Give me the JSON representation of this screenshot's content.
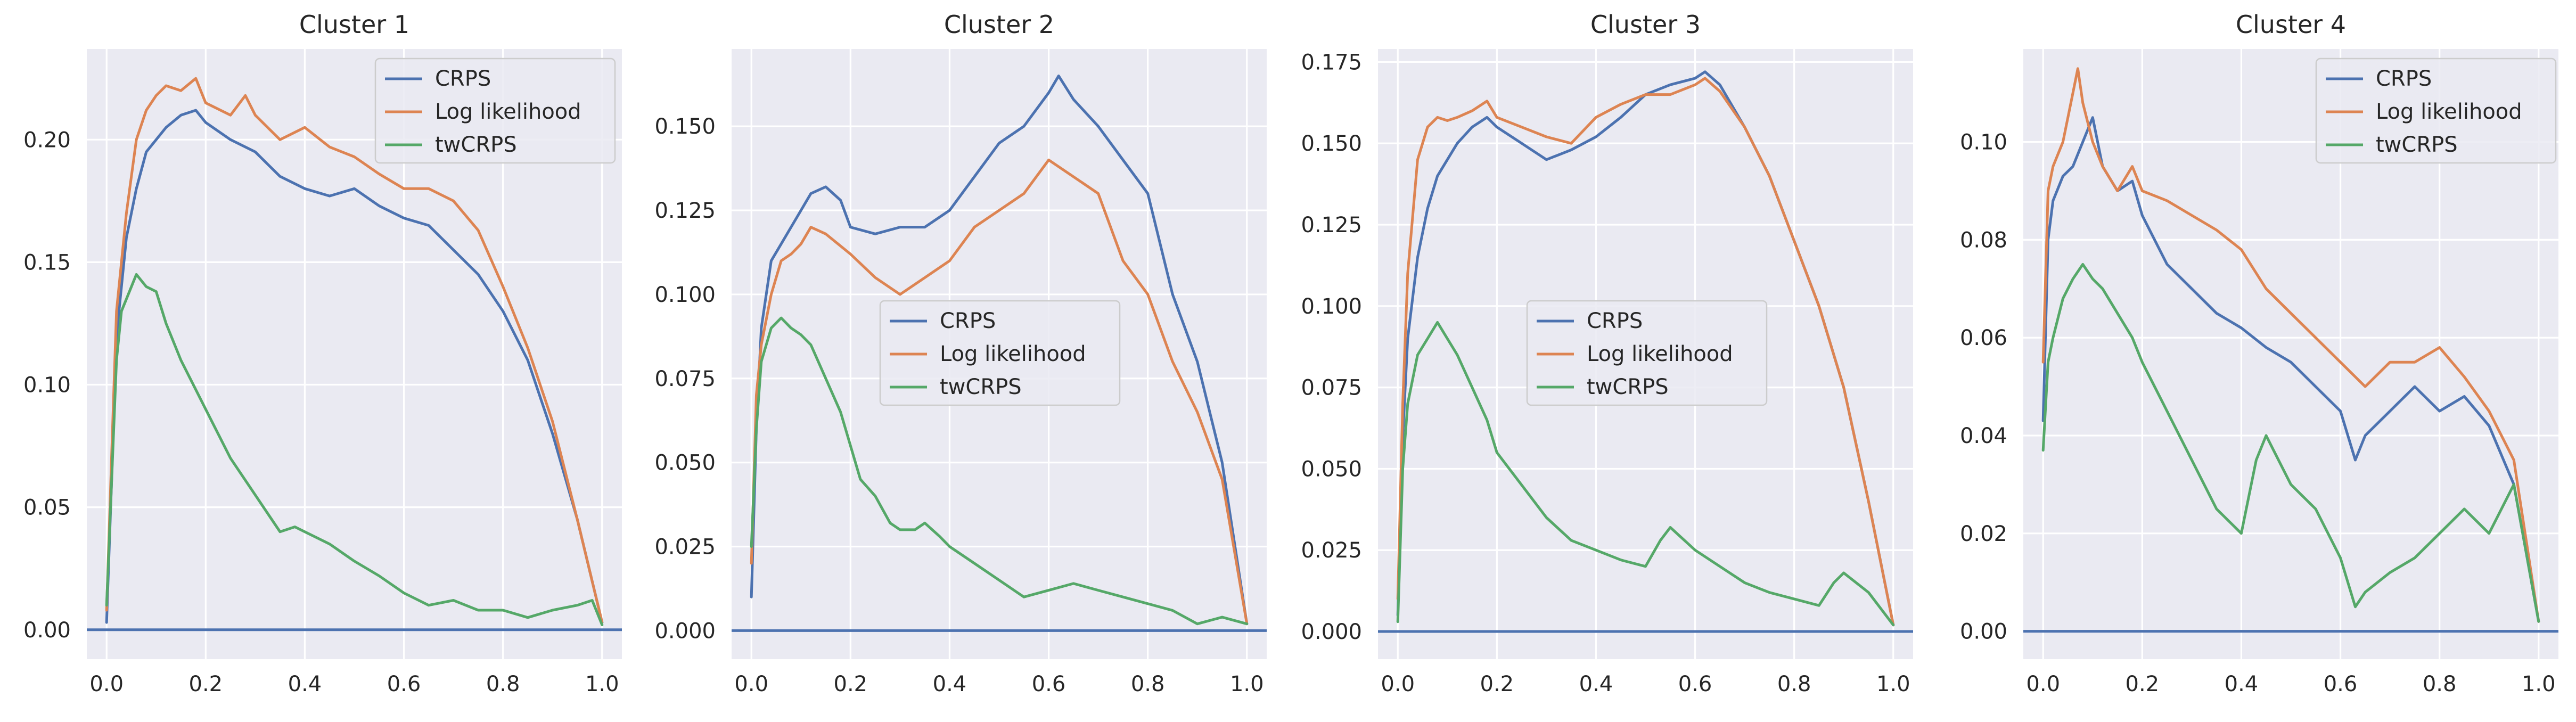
{
  "colors": {
    "CRPS": "#4c72b0",
    "Log likelihood": "#dd8452",
    "twCRPS": "#55a868",
    "baseline": "#4c72b0"
  },
  "chart_data": [
    {
      "type": "line",
      "title": "Cluster 1",
      "xlabel": "",
      "ylabel": "",
      "xlim": [
        -0.04,
        1.04
      ],
      "ylim": [
        -0.012,
        0.237
      ],
      "xticks": [
        "0.0",
        "0.2",
        "0.4",
        "0.6",
        "0.8",
        "1.0"
      ],
      "xtick_values": [
        0,
        0.2,
        0.4,
        0.6,
        0.8,
        1.0
      ],
      "yticks": [
        "0.00",
        "0.05",
        "0.10",
        "0.15",
        "0.20"
      ],
      "ytick_values": [
        0,
        0.05,
        0.1,
        0.15,
        0.2
      ],
      "legend": {
        "placement": "upper-right",
        "labels": [
          "CRPS",
          "Log likelihood",
          "twCRPS"
        ]
      },
      "grid": true,
      "baseline": 0,
      "series": [
        {
          "name": "CRPS",
          "x": [
            0,
            0.01,
            0.02,
            0.04,
            0.06,
            0.08,
            0.1,
            0.12,
            0.15,
            0.18,
            0.2,
            0.25,
            0.3,
            0.35,
            0.4,
            0.45,
            0.5,
            0.55,
            0.6,
            0.65,
            0.7,
            0.75,
            0.8,
            0.85,
            0.9,
            0.95,
            1.0
          ],
          "y": [
            0.003,
            0.06,
            0.12,
            0.16,
            0.18,
            0.195,
            0.2,
            0.205,
            0.21,
            0.212,
            0.207,
            0.2,
            0.195,
            0.185,
            0.18,
            0.177,
            0.18,
            0.173,
            0.168,
            0.165,
            0.155,
            0.145,
            0.13,
            0.11,
            0.08,
            0.045,
            0.003
          ]
        },
        {
          "name": "Log likelihood",
          "x": [
            0,
            0.01,
            0.02,
            0.04,
            0.06,
            0.08,
            0.1,
            0.12,
            0.15,
            0.18,
            0.2,
            0.25,
            0.28,
            0.3,
            0.35,
            0.4,
            0.45,
            0.5,
            0.55,
            0.6,
            0.65,
            0.7,
            0.75,
            0.8,
            0.85,
            0.9,
            0.95,
            1.0
          ],
          "y": [
            0.008,
            0.07,
            0.13,
            0.17,
            0.2,
            0.212,
            0.218,
            0.222,
            0.22,
            0.225,
            0.215,
            0.21,
            0.218,
            0.21,
            0.2,
            0.205,
            0.197,
            0.193,
            0.186,
            0.18,
            0.18,
            0.175,
            0.163,
            0.14,
            0.115,
            0.085,
            0.045,
            0.003
          ]
        },
        {
          "name": "twCRPS",
          "x": [
            0,
            0.01,
            0.02,
            0.03,
            0.05,
            0.06,
            0.08,
            0.1,
            0.12,
            0.15,
            0.2,
            0.25,
            0.3,
            0.35,
            0.38,
            0.4,
            0.45,
            0.5,
            0.55,
            0.6,
            0.65,
            0.7,
            0.75,
            0.8,
            0.85,
            0.9,
            0.95,
            0.98,
            1.0
          ],
          "y": [
            0.01,
            0.06,
            0.11,
            0.13,
            0.14,
            0.145,
            0.14,
            0.138,
            0.125,
            0.11,
            0.09,
            0.07,
            0.055,
            0.04,
            0.042,
            0.04,
            0.035,
            0.028,
            0.022,
            0.015,
            0.01,
            0.012,
            0.008,
            0.008,
            0.005,
            0.008,
            0.01,
            0.012,
            0.002
          ]
        }
      ]
    },
    {
      "type": "line",
      "title": "Cluster 2",
      "xlabel": "",
      "ylabel": "",
      "xlim": [
        -0.04,
        1.04
      ],
      "ylim": [
        -0.0085,
        0.173
      ],
      "xticks": [
        "0.0",
        "0.2",
        "0.4",
        "0.6",
        "0.8",
        "1.0"
      ],
      "xtick_values": [
        0,
        0.2,
        0.4,
        0.6,
        0.8,
        1.0
      ],
      "yticks": [
        "0.000",
        "0.025",
        "0.050",
        "0.075",
        "0.100",
        "0.125",
        "0.150"
      ],
      "ytick_values": [
        0,
        0.025,
        0.05,
        0.075,
        0.1,
        0.125,
        0.15
      ],
      "legend": {
        "placement": "center",
        "labels": [
          "CRPS",
          "Log likelihood",
          "twCRPS"
        ]
      },
      "grid": true,
      "baseline": 0,
      "series": [
        {
          "name": "CRPS",
          "x": [
            0,
            0.01,
            0.02,
            0.04,
            0.06,
            0.08,
            0.1,
            0.12,
            0.15,
            0.18,
            0.2,
            0.25,
            0.3,
            0.35,
            0.4,
            0.45,
            0.5,
            0.55,
            0.6,
            0.62,
            0.65,
            0.7,
            0.75,
            0.8,
            0.85,
            0.9,
            0.95,
            1.0
          ],
          "y": [
            0.01,
            0.06,
            0.09,
            0.11,
            0.115,
            0.12,
            0.125,
            0.13,
            0.132,
            0.128,
            0.12,
            0.118,
            0.12,
            0.12,
            0.125,
            0.135,
            0.145,
            0.15,
            0.16,
            0.165,
            0.158,
            0.15,
            0.14,
            0.13,
            0.1,
            0.08,
            0.05,
            0.002
          ]
        },
        {
          "name": "Log likelihood",
          "x": [
            0,
            0.01,
            0.02,
            0.04,
            0.06,
            0.08,
            0.1,
            0.12,
            0.15,
            0.2,
            0.25,
            0.3,
            0.35,
            0.4,
            0.45,
            0.5,
            0.55,
            0.6,
            0.65,
            0.7,
            0.75,
            0.8,
            0.85,
            0.9,
            0.95,
            1.0
          ],
          "y": [
            0.02,
            0.07,
            0.085,
            0.1,
            0.11,
            0.112,
            0.115,
            0.12,
            0.118,
            0.112,
            0.105,
            0.1,
            0.105,
            0.11,
            0.12,
            0.125,
            0.13,
            0.14,
            0.135,
            0.13,
            0.11,
            0.1,
            0.08,
            0.065,
            0.045,
            0.002
          ]
        },
        {
          "name": "twCRPS",
          "x": [
            0,
            0.01,
            0.02,
            0.04,
            0.06,
            0.08,
            0.1,
            0.12,
            0.15,
            0.18,
            0.2,
            0.22,
            0.25,
            0.28,
            0.3,
            0.33,
            0.35,
            0.38,
            0.4,
            0.45,
            0.5,
            0.55,
            0.6,
            0.65,
            0.7,
            0.75,
            0.8,
            0.85,
            0.9,
            0.95,
            1.0
          ],
          "y": [
            0.025,
            0.06,
            0.08,
            0.09,
            0.093,
            0.09,
            0.088,
            0.085,
            0.075,
            0.065,
            0.055,
            0.045,
            0.04,
            0.032,
            0.03,
            0.03,
            0.032,
            0.028,
            0.025,
            0.02,
            0.015,
            0.01,
            0.012,
            0.014,
            0.012,
            0.01,
            0.008,
            0.006,
            0.002,
            0.004,
            0.002
          ]
        }
      ]
    },
    {
      "type": "line",
      "title": "Cluster 3",
      "xlabel": "",
      "ylabel": "",
      "xlim": [
        -0.04,
        1.04
      ],
      "ylim": [
        -0.0085,
        0.179
      ],
      "xticks": [
        "0.0",
        "0.2",
        "0.4",
        "0.6",
        "0.8",
        "1.0"
      ],
      "xtick_values": [
        0,
        0.2,
        0.4,
        0.6,
        0.8,
        1.0
      ],
      "yticks": [
        "0.000",
        "0.025",
        "0.050",
        "0.075",
        "0.100",
        "0.125",
        "0.150",
        "0.175"
      ],
      "ytick_values": [
        0,
        0.025,
        0.05,
        0.075,
        0.1,
        0.125,
        0.15,
        0.175
      ],
      "legend": {
        "placement": "center",
        "labels": [
          "CRPS",
          "Log likelihood",
          "twCRPS"
        ]
      },
      "grid": true,
      "baseline": 0,
      "series": [
        {
          "name": "CRPS",
          "x": [
            0,
            0.01,
            0.02,
            0.04,
            0.06,
            0.08,
            0.1,
            0.12,
            0.15,
            0.18,
            0.2,
            0.25,
            0.3,
            0.35,
            0.4,
            0.45,
            0.5,
            0.55,
            0.6,
            0.62,
            0.65,
            0.7,
            0.75,
            0.8,
            0.85,
            0.9,
            0.95,
            1.0
          ],
          "y": [
            0.005,
            0.06,
            0.09,
            0.115,
            0.13,
            0.14,
            0.145,
            0.15,
            0.155,
            0.158,
            0.155,
            0.15,
            0.145,
            0.148,
            0.152,
            0.158,
            0.165,
            0.168,
            0.17,
            0.172,
            0.168,
            0.155,
            0.14,
            0.12,
            0.1,
            0.075,
            0.04,
            0.002
          ]
        },
        {
          "name": "Log likelihood",
          "x": [
            0,
            0.01,
            0.02,
            0.04,
            0.06,
            0.08,
            0.1,
            0.12,
            0.15,
            0.18,
            0.2,
            0.25,
            0.3,
            0.35,
            0.4,
            0.45,
            0.5,
            0.55,
            0.6,
            0.62,
            0.65,
            0.7,
            0.75,
            0.8,
            0.85,
            0.9,
            0.95,
            1.0
          ],
          "y": [
            0.01,
            0.07,
            0.11,
            0.145,
            0.155,
            0.158,
            0.157,
            0.158,
            0.16,
            0.163,
            0.158,
            0.155,
            0.152,
            0.15,
            0.158,
            0.162,
            0.165,
            0.165,
            0.168,
            0.17,
            0.166,
            0.155,
            0.14,
            0.12,
            0.1,
            0.075,
            0.04,
            0.002
          ]
        },
        {
          "name": "twCRPS",
          "x": [
            0,
            0.01,
            0.02,
            0.04,
            0.06,
            0.08,
            0.1,
            0.12,
            0.15,
            0.18,
            0.2,
            0.25,
            0.3,
            0.35,
            0.4,
            0.45,
            0.5,
            0.53,
            0.55,
            0.6,
            0.65,
            0.7,
            0.75,
            0.8,
            0.85,
            0.88,
            0.9,
            0.95,
            1.0
          ],
          "y": [
            0.003,
            0.05,
            0.07,
            0.085,
            0.09,
            0.095,
            0.09,
            0.085,
            0.075,
            0.065,
            0.055,
            0.045,
            0.035,
            0.028,
            0.025,
            0.022,
            0.02,
            0.028,
            0.032,
            0.025,
            0.02,
            0.015,
            0.012,
            0.01,
            0.008,
            0.015,
            0.018,
            0.012,
            0.002
          ]
        }
      ]
    },
    {
      "type": "line",
      "title": "Cluster 4",
      "xlabel": "",
      "ylabel": "",
      "xlim": [
        -0.04,
        1.04
      ],
      "ylim": [
        -0.0057,
        0.119
      ],
      "xticks": [
        "0.0",
        "0.2",
        "0.4",
        "0.6",
        "0.8",
        "1.0"
      ],
      "xtick_values": [
        0,
        0.2,
        0.4,
        0.6,
        0.8,
        1.0
      ],
      "yticks": [
        "0.00",
        "0.02",
        "0.04",
        "0.06",
        "0.08",
        "0.10"
      ],
      "ytick_values": [
        0,
        0.02,
        0.04,
        0.06,
        0.08,
        0.1
      ],
      "legend": {
        "placement": "upper-right",
        "labels": [
          "CRPS",
          "Log likelihood",
          "twCRPS"
        ]
      },
      "grid": true,
      "baseline": 0,
      "series": [
        {
          "name": "CRPS",
          "x": [
            0,
            0.01,
            0.02,
            0.04,
            0.06,
            0.08,
            0.1,
            0.12,
            0.15,
            0.18,
            0.2,
            0.25,
            0.3,
            0.35,
            0.4,
            0.45,
            0.5,
            0.55,
            0.6,
            0.63,
            0.65,
            0.7,
            0.75,
            0.8,
            0.85,
            0.9,
            0.95,
            1.0
          ],
          "y": [
            0.043,
            0.08,
            0.088,
            0.093,
            0.095,
            0.1,
            0.105,
            0.095,
            0.09,
            0.092,
            0.085,
            0.075,
            0.07,
            0.065,
            0.062,
            0.058,
            0.055,
            0.05,
            0.045,
            0.035,
            0.04,
            0.045,
            0.05,
            0.045,
            0.048,
            0.042,
            0.03,
            0.002
          ]
        },
        {
          "name": "Log likelihood",
          "x": [
            0,
            0.01,
            0.02,
            0.04,
            0.06,
            0.07,
            0.08,
            0.1,
            0.12,
            0.15,
            0.18,
            0.2,
            0.25,
            0.3,
            0.35,
            0.4,
            0.45,
            0.5,
            0.55,
            0.6,
            0.65,
            0.7,
            0.75,
            0.8,
            0.85,
            0.9,
            0.95,
            1.0
          ],
          "y": [
            0.055,
            0.09,
            0.095,
            0.1,
            0.11,
            0.115,
            0.108,
            0.1,
            0.095,
            0.09,
            0.095,
            0.09,
            0.088,
            0.085,
            0.082,
            0.078,
            0.07,
            0.065,
            0.06,
            0.055,
            0.05,
            0.055,
            0.055,
            0.058,
            0.052,
            0.045,
            0.035,
            0.002
          ]
        },
        {
          "name": "twCRPS",
          "x": [
            0,
            0.01,
            0.02,
            0.04,
            0.06,
            0.08,
            0.1,
            0.12,
            0.15,
            0.18,
            0.2,
            0.25,
            0.3,
            0.35,
            0.4,
            0.43,
            0.45,
            0.5,
            0.55,
            0.6,
            0.63,
            0.65,
            0.7,
            0.75,
            0.8,
            0.85,
            0.9,
            0.95,
            1.0
          ],
          "y": [
            0.037,
            0.055,
            0.06,
            0.068,
            0.072,
            0.075,
            0.072,
            0.07,
            0.065,
            0.06,
            0.055,
            0.045,
            0.035,
            0.025,
            0.02,
            0.035,
            0.04,
            0.03,
            0.025,
            0.015,
            0.005,
            0.008,
            0.012,
            0.015,
            0.02,
            0.025,
            0.02,
            0.03,
            0.002
          ]
        }
      ]
    }
  ]
}
